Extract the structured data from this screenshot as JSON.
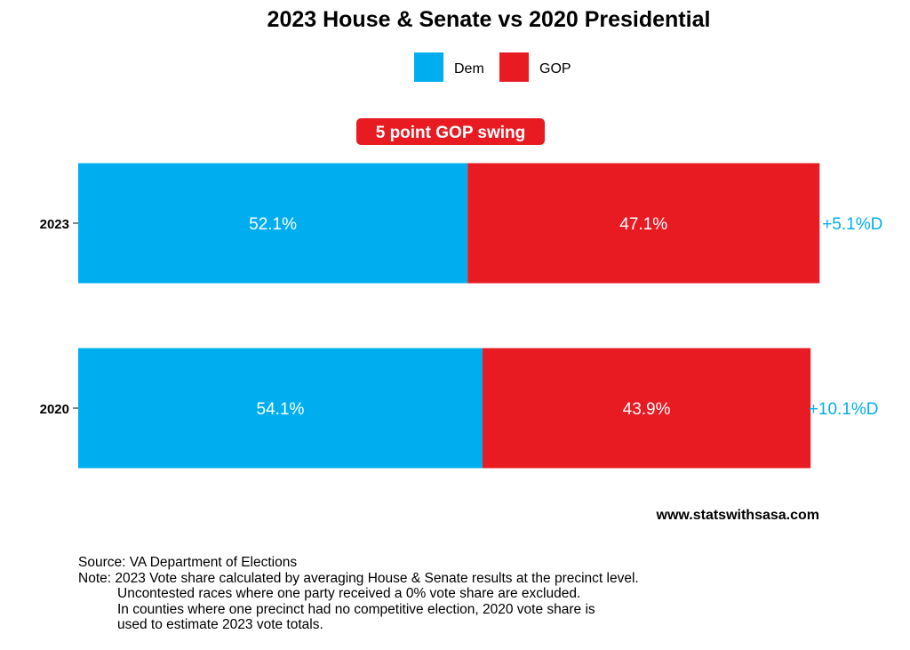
{
  "chart_data": {
    "type": "bar",
    "orientation": "horizontal",
    "stacked": true,
    "title": "2023 House & Senate vs 2020 Presidential",
    "categories": [
      "2023",
      "2020"
    ],
    "series": [
      {
        "name": "Dem",
        "color": "#00AEEF",
        "values": [
          52.1,
          54.1
        ],
        "labels": [
          "52.1%",
          "54.1%"
        ]
      },
      {
        "name": "GOP",
        "color": "#E81B23",
        "values": [
          47.1,
          43.9
        ],
        "labels": [
          "47.1%",
          "43.9%"
        ]
      }
    ],
    "margins": [
      "+5.1%D",
      "+10.1%D"
    ],
    "margin_color": "#00AEEF",
    "xlim": [
      0,
      100
    ],
    "legend_position": "top",
    "grid": false,
    "annotation": {
      "text": "5 point GOP swing",
      "color": "#E81B23"
    }
  },
  "watermark": "www.statswithsasa.com",
  "notes": {
    "source": "Source: VA Department of Elections",
    "lines": [
      "Note: 2023 Vote share calculated by averaging House & Senate results at the precinct level.",
      "Uncontested races where one party received a 0% vote share are excluded.",
      "In counties where one precinct had no competitive election, 2020 vote share is",
      "used to estimate 2023 vote totals."
    ]
  }
}
